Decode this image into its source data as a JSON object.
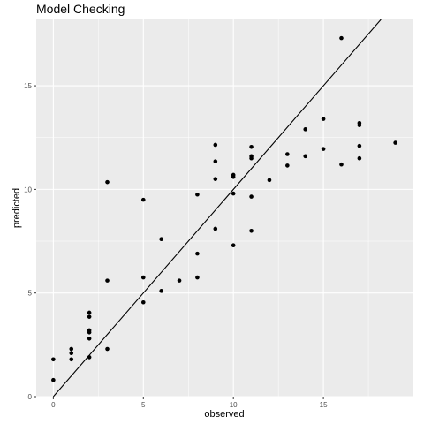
{
  "chart_data": {
    "type": "scatter",
    "title": "Model Checking",
    "xlabel": "observed",
    "ylabel": "predicted",
    "xlim": [
      -0.95,
      19.95
    ],
    "ylim": [
      0,
      18.2
    ],
    "x_ticks": [
      "0",
      "5",
      "10",
      "15"
    ],
    "y_ticks": [
      "0",
      "5",
      "10",
      "15"
    ],
    "grid": true,
    "background": "#ebebeb",
    "grid_color": "#ffffff",
    "point_color": "#000000",
    "reference_line": {
      "intercept": 0,
      "slope": 1,
      "color": "#000000"
    },
    "points": [
      {
        "x": 0,
        "y": 1.8
      },
      {
        "x": 0,
        "y": 0.8
      },
      {
        "x": 1,
        "y": 2.3
      },
      {
        "x": 1,
        "y": 2.1
      },
      {
        "x": 1,
        "y": 1.8
      },
      {
        "x": 2,
        "y": 4.05
      },
      {
        "x": 2,
        "y": 3.85
      },
      {
        "x": 2,
        "y": 3.2
      },
      {
        "x": 2,
        "y": 3.1
      },
      {
        "x": 2,
        "y": 2.8
      },
      {
        "x": 2,
        "y": 1.9
      },
      {
        "x": 3,
        "y": 10.35
      },
      {
        "x": 3,
        "y": 5.6
      },
      {
        "x": 3,
        "y": 2.3
      },
      {
        "x": 5,
        "y": 9.5
      },
      {
        "x": 5,
        "y": 5.75
      },
      {
        "x": 5,
        "y": 4.55
      },
      {
        "x": 6,
        "y": 7.6
      },
      {
        "x": 6,
        "y": 5.1
      },
      {
        "x": 7,
        "y": 5.6
      },
      {
        "x": 8,
        "y": 9.75
      },
      {
        "x": 8,
        "y": 6.9
      },
      {
        "x": 8,
        "y": 5.75
      },
      {
        "x": 9,
        "y": 12.15
      },
      {
        "x": 9,
        "y": 11.35
      },
      {
        "x": 9,
        "y": 10.5
      },
      {
        "x": 9,
        "y": 8.1
      },
      {
        "x": 10,
        "y": 10.7
      },
      {
        "x": 10,
        "y": 10.6
      },
      {
        "x": 10,
        "y": 9.8
      },
      {
        "x": 10,
        "y": 7.3
      },
      {
        "x": 11,
        "y": 12.05
      },
      {
        "x": 11,
        "y": 11.6
      },
      {
        "x": 11,
        "y": 11.5
      },
      {
        "x": 11,
        "y": 9.65
      },
      {
        "x": 11,
        "y": 8.0
      },
      {
        "x": 12,
        "y": 10.45
      },
      {
        "x": 13,
        "y": 11.7
      },
      {
        "x": 13,
        "y": 11.15
      },
      {
        "x": 14,
        "y": 12.9
      },
      {
        "x": 14,
        "y": 11.6
      },
      {
        "x": 15,
        "y": 13.4
      },
      {
        "x": 15,
        "y": 11.95
      },
      {
        "x": 16,
        "y": 17.3
      },
      {
        "x": 16,
        "y": 11.2
      },
      {
        "x": 17,
        "y": 13.2
      },
      {
        "x": 17,
        "y": 13.1
      },
      {
        "x": 17,
        "y": 12.1
      },
      {
        "x": 17,
        "y": 11.5
      },
      {
        "x": 19,
        "y": 12.25
      }
    ]
  }
}
